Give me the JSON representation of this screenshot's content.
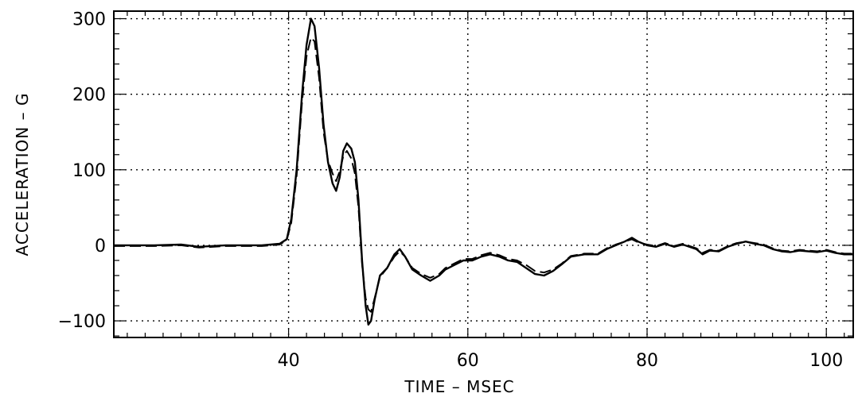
{
  "chart_data": {
    "type": "line",
    "title": "",
    "xlabel": "TIME  –  MSEC",
    "ylabel": "ACCELERATION  –  G",
    "xlim": [
      20.5,
      103
    ],
    "ylim": [
      -122,
      310
    ],
    "x_ticks": [
      40,
      60,
      80,
      100
    ],
    "y_ticks": [
      -100,
      0,
      100,
      200,
      300
    ],
    "grid": true,
    "legend": "none",
    "series": [
      {
        "style": "solid",
        "color": "#000000",
        "points": [
          [
            20.5,
            0
          ],
          [
            25,
            0
          ],
          [
            28,
            1
          ],
          [
            30,
            -2
          ],
          [
            33,
            0
          ],
          [
            37,
            0
          ],
          [
            39,
            2
          ],
          [
            39.8,
            8
          ],
          [
            40.3,
            35
          ],
          [
            40.9,
            100
          ],
          [
            41.5,
            200
          ],
          [
            42,
            265
          ],
          [
            42.5,
            300
          ],
          [
            42.9,
            290
          ],
          [
            43.4,
            235
          ],
          [
            43.9,
            160
          ],
          [
            44.4,
            110
          ],
          [
            44.9,
            82
          ],
          [
            45.3,
            72
          ],
          [
            45.7,
            90
          ],
          [
            46.1,
            125
          ],
          [
            46.5,
            135
          ],
          [
            47,
            128
          ],
          [
            47.4,
            110
          ],
          [
            47.8,
            60
          ],
          [
            48.2,
            -20
          ],
          [
            48.6,
            -80
          ],
          [
            48.9,
            -105
          ],
          [
            49.2,
            -100
          ],
          [
            49.6,
            -72
          ],
          [
            50.2,
            -40
          ],
          [
            51,
            -30
          ],
          [
            51.8,
            -12
          ],
          [
            52.4,
            -5
          ],
          [
            53,
            -15
          ],
          [
            53.8,
            -32
          ],
          [
            54.8,
            -40
          ],
          [
            55.8,
            -47
          ],
          [
            56.8,
            -40
          ],
          [
            57.5,
            -32
          ],
          [
            58.5,
            -26
          ],
          [
            59.5,
            -20
          ],
          [
            60.5,
            -20
          ],
          [
            61.5,
            -15
          ],
          [
            62.5,
            -12
          ],
          [
            63.5,
            -15
          ],
          [
            64.5,
            -20
          ],
          [
            65.5,
            -22
          ],
          [
            66.5,
            -30
          ],
          [
            67.5,
            -38
          ],
          [
            68.5,
            -40
          ],
          [
            69.5,
            -34
          ],
          [
            70.5,
            -25
          ],
          [
            71.5,
            -15
          ],
          [
            73,
            -12
          ],
          [
            74.5,
            -12
          ],
          [
            75.5,
            -5
          ],
          [
            76.5,
            0
          ],
          [
            77.5,
            5
          ],
          [
            78.3,
            10
          ],
          [
            79,
            5
          ],
          [
            80,
            0
          ],
          [
            81,
            -2
          ],
          [
            82,
            2
          ],
          [
            83,
            -2
          ],
          [
            84,
            1
          ],
          [
            85.5,
            -5
          ],
          [
            86.2,
            -12
          ],
          [
            87,
            -7
          ],
          [
            88,
            -8
          ],
          [
            89,
            -2
          ],
          [
            90,
            2
          ],
          [
            91,
            5
          ],
          [
            92,
            2
          ],
          [
            93,
            0
          ],
          [
            94,
            -5
          ],
          [
            95,
            -8
          ],
          [
            96,
            -9
          ],
          [
            97,
            -7
          ],
          [
            98,
            -8
          ],
          [
            99,
            -9
          ],
          [
            100,
            -7
          ],
          [
            101,
            -10
          ],
          [
            102,
            -12
          ],
          [
            103,
            -12
          ]
        ]
      },
      {
        "style": "dashed",
        "color": "#000000",
        "points": [
          [
            20.5,
            -1
          ],
          [
            25,
            -1
          ],
          [
            28,
            0
          ],
          [
            30,
            -3
          ],
          [
            33,
            -1
          ],
          [
            37,
            -1
          ],
          [
            39,
            1
          ],
          [
            39.8,
            7
          ],
          [
            40.3,
            30
          ],
          [
            40.9,
            92
          ],
          [
            41.5,
            190
          ],
          [
            42,
            250
          ],
          [
            42.5,
            275
          ],
          [
            42.9,
            270
          ],
          [
            43.4,
            222
          ],
          [
            43.9,
            150
          ],
          [
            44.4,
            112
          ],
          [
            44.9,
            95
          ],
          [
            45.3,
            85
          ],
          [
            45.7,
            98
          ],
          [
            46.1,
            118
          ],
          [
            46.5,
            125
          ],
          [
            47,
            115
          ],
          [
            47.4,
            95
          ],
          [
            47.8,
            50
          ],
          [
            48.2,
            -25
          ],
          [
            48.6,
            -70
          ],
          [
            48.9,
            -85
          ],
          [
            49.2,
            -88
          ],
          [
            49.6,
            -70
          ],
          [
            50.2,
            -42
          ],
          [
            51,
            -30
          ],
          [
            51.8,
            -15
          ],
          [
            52.4,
            -8
          ],
          [
            53,
            -15
          ],
          [
            53.8,
            -30
          ],
          [
            54.8,
            -38
          ],
          [
            55.8,
            -43
          ],
          [
            56.8,
            -38
          ],
          [
            57.5,
            -30
          ],
          [
            58.5,
            -24
          ],
          [
            59.5,
            -18
          ],
          [
            60.5,
            -18
          ],
          [
            61.5,
            -13
          ],
          [
            62.5,
            -10
          ],
          [
            63.5,
            -13
          ],
          [
            64.5,
            -18
          ],
          [
            65.5,
            -20
          ],
          [
            66.5,
            -26
          ],
          [
            67.5,
            -34
          ],
          [
            68.5,
            -36
          ],
          [
            69.5,
            -32
          ],
          [
            70.5,
            -24
          ],
          [
            71.5,
            -14
          ],
          [
            73,
            -11
          ],
          [
            74.5,
            -11
          ],
          [
            75.5,
            -4
          ],
          [
            76.5,
            1
          ],
          [
            77.5,
            5
          ],
          [
            78.3,
            8
          ],
          [
            79,
            4
          ],
          [
            80,
            1
          ],
          [
            81,
            -1
          ],
          [
            82,
            3
          ],
          [
            83,
            -1
          ],
          [
            84,
            2
          ],
          [
            85.5,
            -4
          ],
          [
            86.2,
            -10
          ],
          [
            87,
            -6
          ],
          [
            88,
            -7
          ],
          [
            89,
            -1
          ],
          [
            90,
            3
          ],
          [
            91,
            5
          ],
          [
            92,
            3
          ],
          [
            93,
            1
          ],
          [
            94,
            -4
          ],
          [
            95,
            -7
          ],
          [
            96,
            -8
          ],
          [
            97,
            -6
          ],
          [
            98,
            -7
          ],
          [
            99,
            -8
          ],
          [
            100,
            -6
          ],
          [
            101,
            -9
          ],
          [
            102,
            -11
          ],
          [
            103,
            -11
          ]
        ]
      }
    ]
  }
}
